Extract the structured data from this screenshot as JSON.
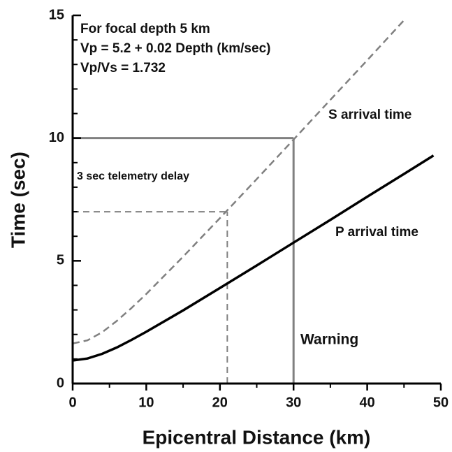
{
  "chart_data": {
    "type": "line",
    "x_label": "Epicentral Distance (km)",
    "y_label": "Time (sec)",
    "xlim": [
      0,
      50
    ],
    "xticks": [
      0,
      10,
      20,
      30,
      40,
      50
    ],
    "xticks_minor": [
      5,
      15,
      25,
      35,
      45
    ],
    "ylim": [
      0,
      15
    ],
    "yticks": [
      0,
      5,
      10,
      15
    ],
    "yticks_minor": [
      1,
      2,
      3,
      4,
      6,
      7,
      8,
      9,
      11,
      12,
      13,
      14
    ],
    "series": [
      {
        "name": "S arrival time",
        "color": "#808080",
        "dashed": true,
        "x": [
          0,
          2,
          4,
          6,
          8,
          10,
          15,
          20,
          25,
          30,
          35,
          40,
          45
        ],
        "values": [
          1.63,
          1.76,
          2.09,
          2.55,
          3.08,
          3.65,
          5.17,
          6.74,
          8.33,
          9.94,
          11.56,
          13.17,
          14.8
        ]
      },
      {
        "name": "P arrival time",
        "color": "#000000",
        "dashed": false,
        "x": [
          0,
          2,
          4,
          6,
          8,
          10,
          15,
          20,
          25,
          30,
          35,
          40,
          45,
          49
        ],
        "values": [
          0.94,
          1.02,
          1.21,
          1.47,
          1.78,
          2.11,
          2.98,
          3.89,
          4.81,
          5.74,
          6.67,
          7.61,
          8.54,
          9.29
        ]
      }
    ],
    "reference_lines": [
      {
        "x": 30,
        "y": 10,
        "color": "#808080",
        "dashed": false
      },
      {
        "x": 21,
        "y": 7,
        "color": "#808080",
        "dashed": true
      }
    ],
    "annotations": [
      "For focal depth 5 km",
      "Vp = 5.2 + 0.02 Depth  (km/sec)",
      "Vp/Vs = 1.732",
      "3 sec telemetry delay",
      "Warning"
    ]
  }
}
